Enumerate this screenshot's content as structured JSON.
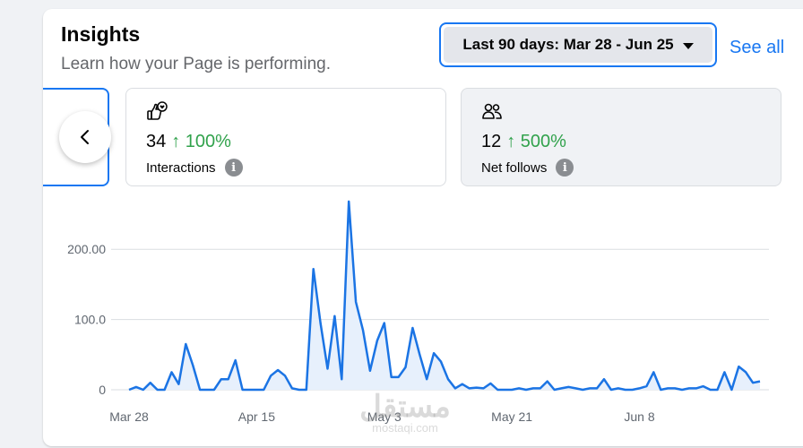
{
  "header": {
    "title": "Insights",
    "subtitle": "Learn how your Page is performing."
  },
  "toolbar": {
    "date_range_label": "Last 90 days: Mar 28 - Jun 25",
    "see_all_label": "See all"
  },
  "metrics": [
    {
      "value": "34",
      "change": "↑ 100%",
      "label": "Interactions",
      "icon": "thumbs-up-heart-icon"
    },
    {
      "value": "12",
      "change": "↑ 500%",
      "label": "Net follows",
      "icon": "people-icon"
    }
  ],
  "colors": {
    "accent": "#1877f2",
    "positive": "#31a24c",
    "line": "#1b74e4",
    "area_fill": "#e7f0fc"
  },
  "watermark": {
    "text_ar": "مستقل",
    "text_en": "mostaqi.com"
  },
  "chart_data": {
    "type": "area",
    "ylim": [
      0,
      250
    ],
    "y_ticks": [
      {
        "value": 200,
        "label": "200.00"
      },
      {
        "value": 100,
        "label": "100.0"
      },
      {
        "value": 0,
        "label": "0"
      }
    ],
    "x_tick_labels": [
      "Mar 28",
      "Apr 15",
      "May 3",
      "May 21",
      "Jun 8"
    ],
    "x_tick_indices": [
      0,
      18,
      36,
      54,
      72
    ],
    "grid": true,
    "series": [
      {
        "values": [
          0,
          4,
          0,
          10,
          0,
          0,
          25,
          8,
          65,
          35,
          0,
          0,
          0,
          15,
          15,
          42,
          0,
          0,
          0,
          0,
          20,
          28,
          20,
          2,
          0,
          0,
          172,
          95,
          30,
          105,
          15,
          268,
          125,
          85,
          27,
          70,
          95,
          18,
          18,
          32,
          88,
          50,
          15,
          52,
          40,
          15,
          2,
          8,
          2,
          3,
          2,
          9,
          0,
          0,
          0,
          2,
          0,
          2,
          2,
          12,
          0,
          2,
          4,
          2,
          0,
          2,
          2,
          15,
          0,
          2,
          0,
          0,
          2,
          5,
          25,
          0,
          2,
          2,
          0,
          2,
          2,
          5,
          0,
          0,
          25,
          0,
          33,
          25,
          10,
          12
        ]
      }
    ]
  }
}
